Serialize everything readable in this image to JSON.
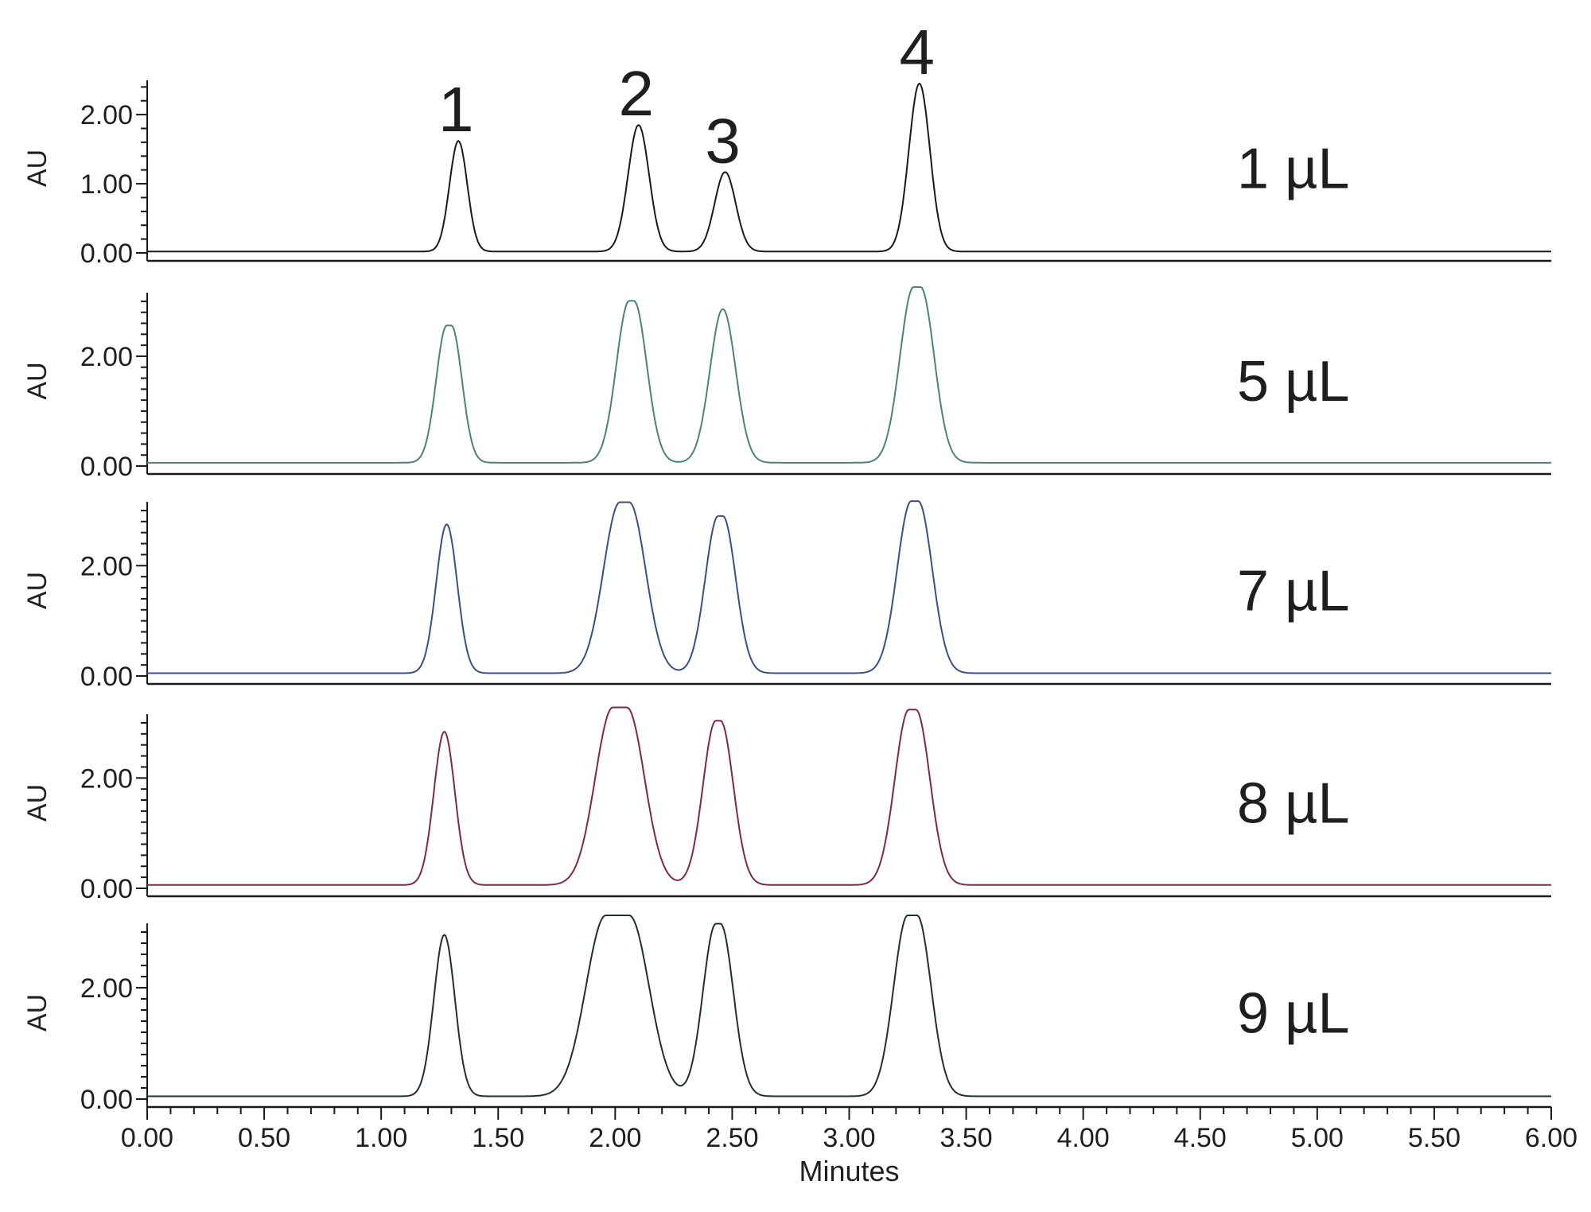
{
  "chart_data": {
    "type": "line",
    "xlabel": "Minutes",
    "xlim": [
      0,
      6
    ],
    "x_ticks": [
      "0.00",
      "0.50",
      "1.00",
      "1.50",
      "2.00",
      "2.50",
      "3.00",
      "3.50",
      "4.00",
      "4.50",
      "5.00",
      "5.50",
      "6.00"
    ],
    "peak_labels": [
      {
        "text": "1",
        "x": 1.33,
        "y": 1.62
      },
      {
        "text": "2",
        "x": 2.1,
        "y": 1.85
      },
      {
        "text": "3",
        "x": 2.47,
        "y": 1.17
      },
      {
        "text": "4",
        "x": 3.3,
        "y": 2.45
      }
    ],
    "panels": [
      {
        "volume_label": "1 µL",
        "ylabel": "AU",
        "ylim": [
          0,
          2.45
        ],
        "y_ticks": [
          "0.00",
          "1.00",
          "2.00"
        ],
        "color": "#1a1a1a",
        "baseline": 0.02,
        "peaks": [
          {
            "rt": 1.33,
            "height": 1.6,
            "width": 0.038,
            "flat": 0
          },
          {
            "rt": 2.1,
            "height": 1.83,
            "width": 0.045,
            "flat": 0
          },
          {
            "rt": 2.47,
            "height": 1.15,
            "width": 0.045,
            "flat": 0
          },
          {
            "rt": 3.3,
            "height": 2.43,
            "width": 0.045,
            "flat": 0
          }
        ]
      },
      {
        "volume_label": "5 µL",
        "ylabel": "AU",
        "ylim": [
          0,
          3.1
        ],
        "y_ticks": [
          "0.00",
          "2.00"
        ],
        "color": "#4a8377",
        "baseline": 0.06,
        "peaks": [
          {
            "rt": 1.29,
            "height": 2.5,
            "width": 0.045,
            "flat": 0.01
          },
          {
            "rt": 2.07,
            "height": 2.95,
            "width": 0.055,
            "flat": 0.01
          },
          {
            "rt": 2.46,
            "height": 2.8,
            "width": 0.055,
            "flat": 0
          },
          {
            "rt": 3.29,
            "height": 3.2,
            "width": 0.058,
            "flat": 0.015
          }
        ]
      },
      {
        "volume_label": "7 µL",
        "ylabel": "AU",
        "ylim": [
          0,
          3.1
        ],
        "y_ticks": [
          "0.00",
          "2.00"
        ],
        "color": "#3b4f86",
        "baseline": 0.05,
        "peaks": [
          {
            "rt": 1.28,
            "height": 2.7,
            "width": 0.045,
            "flat": 0
          },
          {
            "rt": 2.04,
            "height": 3.1,
            "width": 0.07,
            "flat": 0.02
          },
          {
            "rt": 2.45,
            "height": 2.85,
            "width": 0.055,
            "flat": 0.01
          },
          {
            "rt": 3.28,
            "height": 3.12,
            "width": 0.06,
            "flat": 0.015
          }
        ]
      },
      {
        "volume_label": "8 µL",
        "ylabel": "AU",
        "ylim": [
          0,
          3.1
        ],
        "y_ticks": [
          "0.00",
          "2.00"
        ],
        "color": "#7a2a4d",
        "baseline": 0.06,
        "peaks": [
          {
            "rt": 1.27,
            "height": 2.78,
            "width": 0.045,
            "flat": 0
          },
          {
            "rt": 2.02,
            "height": 3.22,
            "width": 0.075,
            "flat": 0.03
          },
          {
            "rt": 2.44,
            "height": 2.98,
            "width": 0.055,
            "flat": 0.01
          },
          {
            "rt": 3.27,
            "height": 3.18,
            "width": 0.06,
            "flat": 0.015
          }
        ]
      },
      {
        "volume_label": "9 µL",
        "ylabel": "AU",
        "ylim": [
          0,
          3.1
        ],
        "y_ticks": [
          "0.00",
          "2.00"
        ],
        "color": "#1f3322",
        "baseline": 0.05,
        "peaks": [
          {
            "rt": 1.27,
            "height": 2.9,
            "width": 0.045,
            "flat": 0
          },
          {
            "rt": 2.01,
            "height": 3.25,
            "width": 0.085,
            "flat": 0.05
          },
          {
            "rt": 2.44,
            "height": 3.1,
            "width": 0.055,
            "flat": 0.01
          },
          {
            "rt": 3.27,
            "height": 3.25,
            "width": 0.06,
            "flat": 0.02
          }
        ]
      }
    ]
  }
}
